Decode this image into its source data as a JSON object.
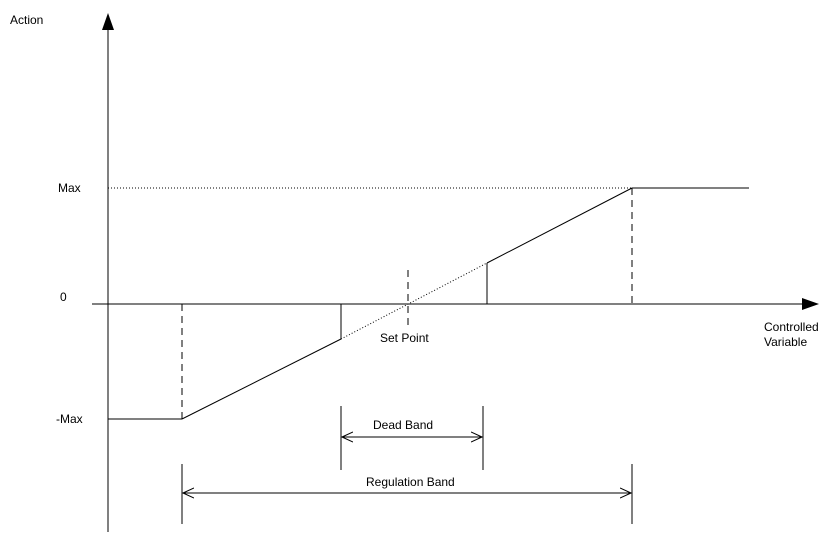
{
  "axes": {
    "y_label": "Action",
    "x_label_line1": "Controlled",
    "x_label_line2": "Variable"
  },
  "y_ticks": {
    "max": "Max",
    "zero": "0",
    "neg_max": "-Max"
  },
  "labels": {
    "set_point": "Set Point",
    "dead_band": "Dead Band",
    "regulation_band": "Regulation Band"
  }
}
